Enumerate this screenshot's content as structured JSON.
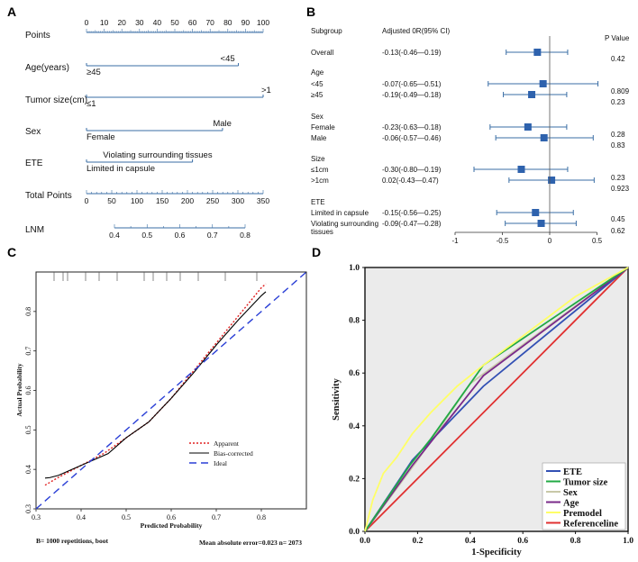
{
  "chart_data": [
    {
      "panel": "A",
      "type": "nomogram",
      "scales": [
        {
          "name": "Points",
          "ticks": [
            "0",
            "10",
            "20",
            "30",
            "40",
            "50",
            "60",
            "70",
            "80",
            "90",
            "100"
          ]
        },
        {
          "name": "Age(years)",
          "levels": [
            {
              "label": "≥45",
              "points": 0
            },
            {
              "label": "<45",
              "points": 86
            }
          ]
        },
        {
          "name": "Tumor size(cm)",
          "levels": [
            {
              "label": "≤1",
              "points": 0
            },
            {
              "label": ">1",
              "points": 100
            }
          ]
        },
        {
          "name": "Sex",
          "levels": [
            {
              "label": "Female",
              "points": 0
            },
            {
              "label": "Male",
              "points": 77
            }
          ]
        },
        {
          "name": "ETE",
          "levels": [
            {
              "label": "Limited in capsule",
              "points": 0
            },
            {
              "label": "Violating surrounding tissues",
              "points": 60
            }
          ]
        },
        {
          "name": "Total Points",
          "ticks": [
            "0",
            "50",
            "100",
            "150",
            "200",
            "250",
            "300",
            "350"
          ]
        },
        {
          "name": "LNM",
          "ticks": [
            "0.4",
            "0.5",
            "0.6",
            "0.7",
            "0.8"
          ]
        }
      ]
    },
    {
      "panel": "B",
      "type": "forest",
      "header": {
        "subgroup": "Subgroup",
        "or": "Adjusted 0R(95% CI)",
        "p": "P Value"
      },
      "xticks": [
        "-1",
        "-0.5",
        "0",
        "0.5"
      ],
      "xlim": [
        -1,
        0.5
      ],
      "groups": [
        {
          "name": "",
          "rows": [
            {
              "label": "Overall",
              "text": "-0.13(-0.46—0.19)",
              "est": -0.13,
              "lo": -0.46,
              "hi": 0.19,
              "p": "0.42"
            }
          ]
        },
        {
          "name": "Age",
          "rows": [
            {
              "label": "<45",
              "text": "-0.07(-0.65—0.51)",
              "est": -0.07,
              "lo": -0.65,
              "hi": 0.51,
              "p": "0.809"
            },
            {
              "label": "≥45",
              "text": "-0.19(-0.49—0.18)",
              "est": -0.19,
              "lo": -0.49,
              "hi": 0.18,
              "p": "0.23"
            }
          ]
        },
        {
          "name": "Sex",
          "rows": [
            {
              "label": "Female",
              "text": "-0.23(-0.63—0.18)",
              "est": -0.23,
              "lo": -0.63,
              "hi": 0.18,
              "p": "0.28"
            },
            {
              "label": "Male",
              "text": "-0.06(-0.57—0.46)",
              "est": -0.06,
              "lo": -0.57,
              "hi": 0.46,
              "p": "0.83"
            }
          ]
        },
        {
          "name": "Size",
          "rows": [
            {
              "label": "≤1cm",
              "text": "-0.30(-0.80—0.19)",
              "est": -0.3,
              "lo": -0.8,
              "hi": 0.19,
              "p": "0.23"
            },
            {
              "label": ">1cm",
              "text": "0.02(-0.43—0.47)",
              "est": 0.02,
              "lo": -0.43,
              "hi": 0.47,
              "p": "0.923"
            }
          ]
        },
        {
          "name": "ETE",
          "rows": [
            {
              "label": "Limited in capsule",
              "text": "-0.15(-0.56—0.25)",
              "est": -0.15,
              "lo": -0.56,
              "hi": 0.25,
              "p": "0.45"
            },
            {
              "label": "Violating surrounding tissues",
              "label2": "tissues",
              "text": "-0.09(-0.47—0.28)",
              "est": -0.09,
              "lo": -0.47,
              "hi": 0.28,
              "p": "0.62"
            }
          ]
        }
      ]
    },
    {
      "panel": "C",
      "type": "line",
      "title": "",
      "xlabel": "Predicted Probability",
      "ylabel": "Actual Probability",
      "xlim": [
        0.3,
        0.9
      ],
      "ylim": [
        0.3,
        0.9
      ],
      "xticks": [
        "0.3",
        "0.4",
        "0.5",
        "0.6",
        "0.7",
        "0.8"
      ],
      "yticks": [
        "0.3",
        "0.4",
        "0.5",
        "0.6",
        "0.7",
        "0.8"
      ],
      "series": [
        {
          "name": "Apparent",
          "color": "#e02020",
          "x": [
            0.32,
            0.35,
            0.4,
            0.45,
            0.5,
            0.55,
            0.6,
            0.65,
            0.7,
            0.75,
            0.8,
            0.81
          ],
          "y": [
            0.36,
            0.38,
            0.41,
            0.44,
            0.48,
            0.52,
            0.58,
            0.65,
            0.72,
            0.79,
            0.86,
            0.87
          ]
        },
        {
          "name": "Bias-corrected",
          "color": "#000000",
          "x": [
            0.32,
            0.33,
            0.35,
            0.38,
            0.42,
            0.46,
            0.5,
            0.55,
            0.6,
            0.65,
            0.7,
            0.75,
            0.8,
            0.81
          ],
          "y": [
            0.378,
            0.379,
            0.385,
            0.4,
            0.42,
            0.44,
            0.48,
            0.52,
            0.58,
            0.645,
            0.715,
            0.78,
            0.84,
            0.85
          ]
        },
        {
          "name": "Ideal",
          "color": "#2a3fd6",
          "x": [
            0.3,
            0.9
          ],
          "y": [
            0.3,
            0.9
          ]
        }
      ],
      "rug": [
        0.34,
        0.36,
        0.37,
        0.41,
        0.44,
        0.48,
        0.54,
        0.56,
        0.59,
        0.62,
        0.66,
        0.72,
        0.79
      ],
      "footer_left": "B= 1000 repetitions, boot",
      "footer_right": "Mean absolute error=0.023 n= 2073"
    },
    {
      "panel": "D",
      "type": "line",
      "title": "",
      "xlabel": "1-Specificity",
      "ylabel": "Sensitivity",
      "xlim": [
        0,
        1
      ],
      "ylim": [
        0,
        1
      ],
      "xticks": [
        "0.0",
        "0.2",
        "0.4",
        "0.6",
        "0.8",
        "1.0"
      ],
      "yticks": [
        "0.0",
        "0.2",
        "0.4",
        "0.6",
        "0.8",
        "1.0"
      ],
      "series": [
        {
          "name": "ETE",
          "color": "#3250b4",
          "x": [
            0,
            0.18,
            0.45,
            1
          ],
          "y": [
            0,
            0.27,
            0.55,
            1
          ]
        },
        {
          "name": "Tumor size",
          "color": "#22aa44",
          "x": [
            0,
            0.17,
            0.25,
            0.45,
            1
          ],
          "y": [
            0,
            0.25,
            0.35,
            0.63,
            1
          ]
        },
        {
          "name": "Sex",
          "color": "#c8c8a8",
          "x": [
            0,
            0.2,
            0.4,
            1
          ],
          "y": [
            0,
            0.27,
            0.56,
            1
          ]
        },
        {
          "name": "Age",
          "color": "#7a2a8a",
          "x": [
            0,
            0.18,
            0.45,
            1
          ],
          "y": [
            0,
            0.25,
            0.59,
            1
          ]
        },
        {
          "name": "Premodel",
          "color": "#ffff66",
          "x": [
            0,
            0.03,
            0.07,
            0.12,
            0.18,
            0.25,
            0.35,
            0.45,
            0.6,
            0.8,
            1
          ],
          "y": [
            0,
            0.12,
            0.22,
            0.28,
            0.37,
            0.45,
            0.55,
            0.63,
            0.74,
            0.89,
            1
          ]
        },
        {
          "name": "Referenceline",
          "color": "#e03030",
          "x": [
            0,
            1
          ],
          "y": [
            0,
            1
          ]
        }
      ]
    }
  ],
  "labels": {
    "panel_a": "A",
    "panel_b": "B",
    "panel_c": "C",
    "panel_d": "D"
  }
}
